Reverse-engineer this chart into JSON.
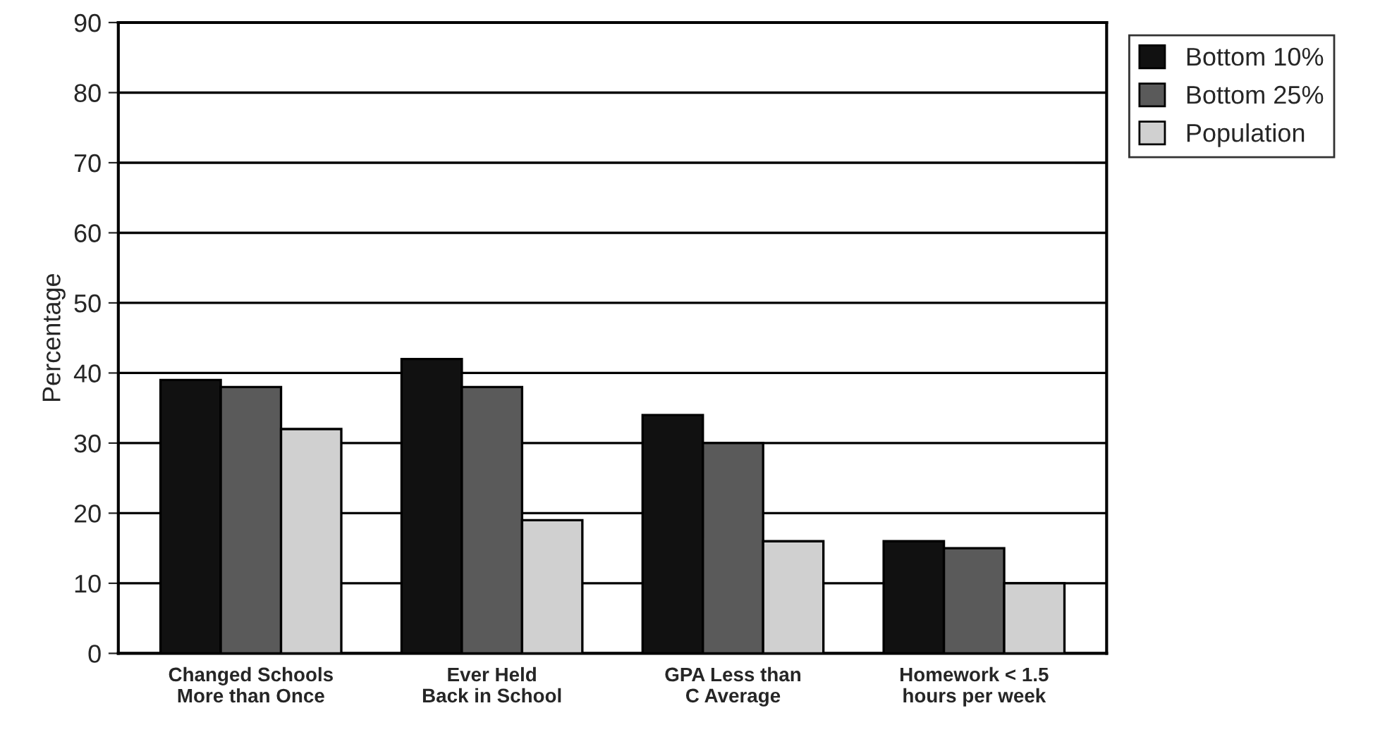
{
  "chart_data": {
    "type": "bar",
    "ylabel": "Percentage",
    "categories": [
      "Changed Schools\nMore than Once",
      "Ever Held\nBack in School",
      "GPA Less than\nC Average",
      "Homework < 1.5\nhours per week"
    ],
    "series": [
      {
        "name": "Bottom 10%",
        "color": "#111111",
        "values": [
          39,
          42,
          34,
          16
        ]
      },
      {
        "name": "Bottom 25%",
        "color": "#5a5a5a",
        "values": [
          38,
          38,
          30,
          15
        ]
      },
      {
        "name": "Population",
        "color": "#d0d0d0",
        "values": [
          32,
          19,
          16,
          10
        ]
      }
    ],
    "ylim": [
      0,
      90
    ],
    "yticks": [
      0,
      10,
      20,
      30,
      40,
      50,
      60,
      70,
      80,
      90
    ],
    "grid": "y",
    "legend": "top right"
  }
}
